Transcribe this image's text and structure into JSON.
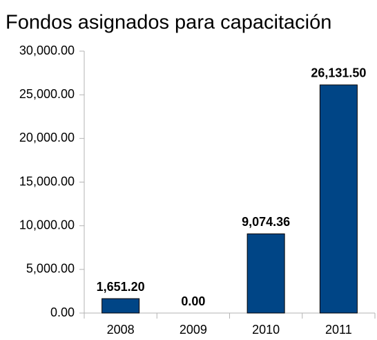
{
  "chart_data": {
    "type": "bar",
    "title": "Fondos asignados para capacitación",
    "categories": [
      "2008",
      "2009",
      "2010",
      "2011"
    ],
    "values": [
      1651.2,
      0,
      9074.36,
      26131.5
    ],
    "value_labels": [
      "1,651.20",
      "0.00",
      "9,074.36",
      "26,131.50"
    ],
    "color": "#004586",
    "ylim": [
      0,
      30000
    ],
    "yticks": [
      {
        "value": 0,
        "label": "0.00"
      },
      {
        "value": 5000,
        "label": "5,000.00"
      },
      {
        "value": 10000,
        "label": "10,000.00"
      },
      {
        "value": 15000,
        "label": "15,000.00"
      },
      {
        "value": 20000,
        "label": "20,000.00"
      },
      {
        "value": 25000,
        "label": "25,000.00"
      },
      {
        "value": 30000,
        "label": "30,000.00"
      }
    ],
    "grid": false
  }
}
